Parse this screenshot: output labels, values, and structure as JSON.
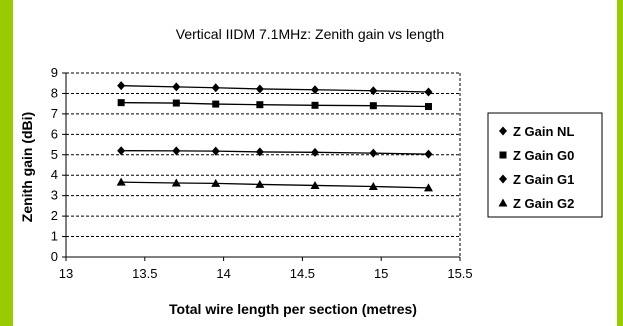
{
  "chart_data": {
    "type": "line",
    "title": "Vertical IIDM 7.1MHz: Zenith gain vs length",
    "xlabel": "Total wire length per section (metres)",
    "ylabel": "Zenith gain (dBi)",
    "xlim": [
      13,
      15.5
    ],
    "ylim": [
      0,
      9
    ],
    "x_ticks": [
      "13",
      "13.5",
      "14",
      "14.5",
      "15",
      "15.5"
    ],
    "y_ticks": [
      "0",
      "1",
      "2",
      "3",
      "4",
      "5",
      "6",
      "7",
      "8",
      "9"
    ],
    "grid": "horizontal dashed",
    "legend_position": "right",
    "x": [
      13.35,
      13.7,
      13.95,
      14.23,
      14.58,
      14.95,
      15.3
    ],
    "series": [
      {
        "name": "Z Gain NL",
        "marker": "diamond",
        "values": [
          8.38,
          8.32,
          8.28,
          8.22,
          8.18,
          8.13,
          8.07
        ]
      },
      {
        "name": "Z Gain G0",
        "marker": "square",
        "values": [
          7.55,
          7.53,
          7.48,
          7.45,
          7.42,
          7.4,
          7.36
        ]
      },
      {
        "name": "Z Gain G1",
        "marker": "diamond",
        "values": [
          5.2,
          5.19,
          5.18,
          5.14,
          5.12,
          5.08,
          5.03
        ]
      },
      {
        "name": "Z Gain G2",
        "marker": "triangle",
        "values": [
          3.66,
          3.62,
          3.6,
          3.55,
          3.5,
          3.45,
          3.38
        ]
      }
    ]
  }
}
